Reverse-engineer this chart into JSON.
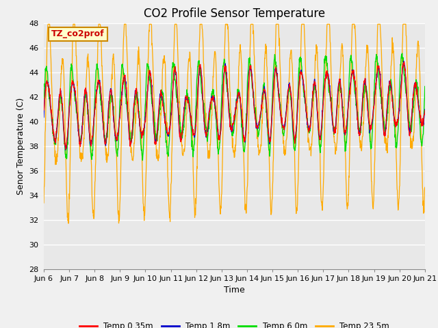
{
  "title": "CO2 Profile Sensor Temperature",
  "ylabel": "Senor Temperature (C)",
  "xlabel": "Time",
  "ylim": [
    28,
    48
  ],
  "yticks": [
    28,
    30,
    32,
    34,
    36,
    38,
    40,
    42,
    44,
    46,
    48
  ],
  "xtick_labels": [
    "Jun 6",
    "Jun 7",
    "Jun 8",
    "Jun 9",
    "Jun 10",
    "Jun 11",
    "Jun 12",
    "Jun 13",
    "Jun 14",
    "Jun 15",
    "Jun 16",
    "Jun 17",
    "Jun 18",
    "Jun 19",
    "Jun 20",
    "Jun 21"
  ],
  "annotation_text": "TZ_co2prof",
  "annotation_color": "#cc0000",
  "annotation_bg": "#ffffcc",
  "annotation_border": "#cc8800",
  "colors": {
    "temp_035": "#ff0000",
    "temp_18": "#0000cc",
    "temp_60": "#00dd00",
    "temp_235": "#ffaa00"
  },
  "legend_labels": [
    "Temp 0.35m",
    "Temp 1.8m",
    "Temp 6.0m",
    "Temp 23.5m"
  ],
  "bg_color": "#e8e8e8",
  "fig_bg_color": "#f0f0f0",
  "grid_color": "#ffffff",
  "title_fontsize": 12,
  "label_fontsize": 9,
  "tick_fontsize": 8
}
